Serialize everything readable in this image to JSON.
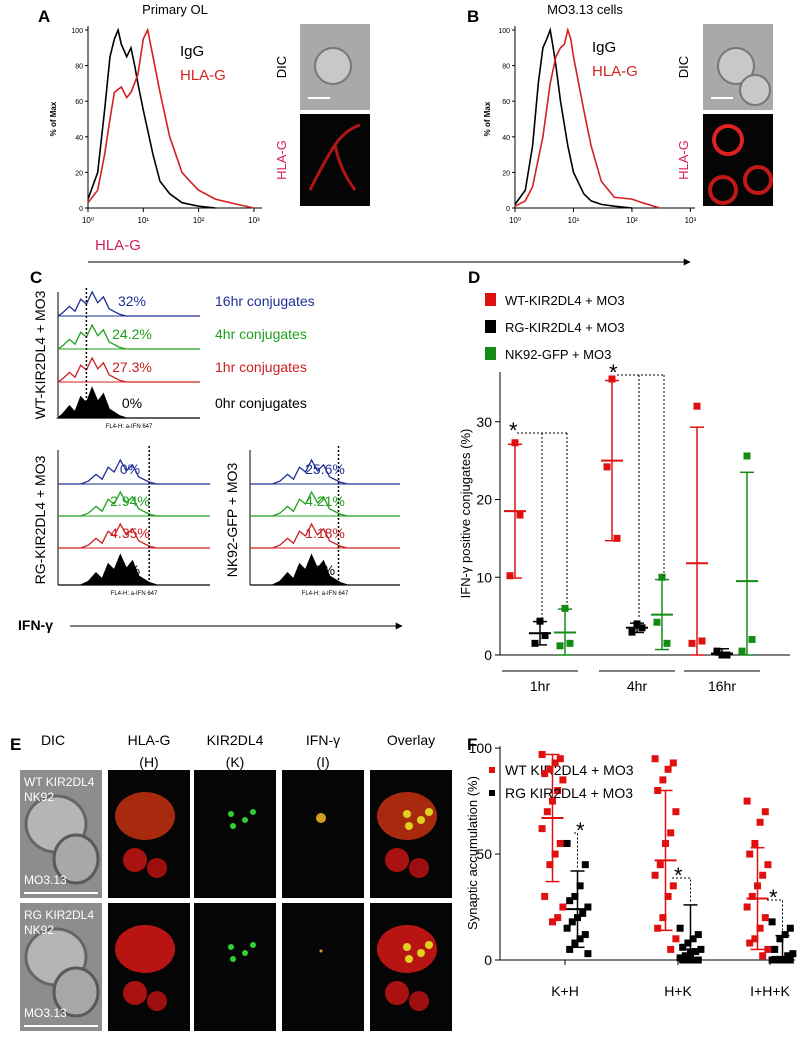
{
  "chart_data": [
    {
      "type": "flow-histogram",
      "panel": "A",
      "title": "Primary OL",
      "ylabel": "% of Max",
      "xlabel": "HLA-G",
      "log_x": true,
      "xlim": [
        1,
        1400
      ],
      "xticks": [
        {
          "value": 1,
          "label": "10⁰"
        },
        {
          "value": 10,
          "label": "10¹"
        },
        {
          "value": 100,
          "label": "10²"
        },
        {
          "value": 1000,
          "label": "10³"
        }
      ],
      "ylim": [
        0,
        100
      ],
      "yticks": [
        0,
        20,
        40,
        60,
        80,
        100
      ],
      "series": [
        {
          "name": "IgG",
          "color": "#000000",
          "x": [
            1,
            1.5,
            2,
            2.5,
            3,
            3.5,
            4,
            5,
            6,
            7,
            8,
            10,
            15,
            20,
            30,
            50,
            100,
            200
          ],
          "values": [
            5,
            20,
            55,
            85,
            95,
            100,
            92,
            85,
            90,
            80,
            70,
            55,
            30,
            15,
            8,
            3,
            1,
            0
          ]
        },
        {
          "name": "HLA-G",
          "color": "#d42020",
          "x": [
            1,
            1.5,
            2,
            2.5,
            3,
            4,
            5,
            6,
            8,
            10,
            12,
            15,
            20,
            30,
            50,
            70,
            100,
            200,
            500,
            1000
          ],
          "values": [
            3,
            10,
            30,
            50,
            65,
            68,
            62,
            65,
            75,
            95,
            100,
            85,
            65,
            40,
            20,
            15,
            10,
            5,
            2,
            0
          ]
        }
      ],
      "image_labels": [
        "DIC",
        "HLA-G"
      ]
    },
    {
      "type": "flow-histogram",
      "panel": "B",
      "title": "MO3.13 cells",
      "ylabel": "% of Max",
      "log_x": true,
      "xlim": [
        1,
        1200
      ],
      "xticks": [
        {
          "value": 1,
          "label": "10⁰"
        },
        {
          "value": 10,
          "label": "10¹"
        },
        {
          "value": 100,
          "label": "10²"
        },
        {
          "value": 1000,
          "label": "10³"
        }
      ],
      "ylim": [
        0,
        100
      ],
      "yticks": [
        0,
        20,
        40,
        60,
        80,
        100
      ],
      "series": [
        {
          "name": "IgG",
          "color": "#000000",
          "x": [
            1,
            1.5,
            2,
            2.5,
            3,
            3.5,
            4,
            4.5,
            5,
            6,
            8,
            10,
            15,
            20,
            30,
            50,
            100
          ],
          "values": [
            2,
            10,
            35,
            70,
            90,
            95,
            100,
            90,
            80,
            60,
            35,
            20,
            8,
            4,
            2,
            1,
            0
          ]
        },
        {
          "name": "HLA-G",
          "color": "#d42020",
          "x": [
            1,
            1.5,
            2,
            3,
            4,
            5,
            6,
            7,
            8,
            9,
            10,
            15,
            20,
            30,
            50,
            100,
            150,
            300
          ],
          "values": [
            1,
            4,
            12,
            40,
            70,
            85,
            90,
            92,
            100,
            95,
            85,
            55,
            35,
            15,
            6,
            5,
            3,
            0
          ]
        }
      ],
      "image_labels": [
        "DIC",
        "HLA-G"
      ]
    },
    {
      "type": "flow-stack",
      "panel": "C",
      "xlabel": "IFN-γ",
      "axis_label": "FL4-H: a-IFN 647",
      "rows": [
        {
          "name": "16hr conjugates",
          "color": "#1f2f95"
        },
        {
          "name": "4hr conjugates",
          "color": "#1fa01f"
        },
        {
          "name": "1hr conjugates",
          "color": "#cc1f1f"
        },
        {
          "name": "0hr conjugates",
          "color": "#000000"
        }
      ],
      "groups": [
        {
          "name": "WT-KIR2DL4 + MO3",
          "values": [
            32,
            24.2,
            27.3,
            0
          ],
          "value_labels": [
            "32%",
            "24.2%",
            "27.3%",
            "0%"
          ]
        },
        {
          "name": "RG-KIR2DL4 + MO3",
          "values": [
            0,
            2.94,
            4.35,
            0
          ],
          "value_labels": [
            "0%",
            "2.94%",
            "4.35%",
            "0%"
          ]
        },
        {
          "name": "NK92-GFP + MO3",
          "values": [
            25.6,
            4.21,
            1.18,
            0
          ],
          "value_labels": [
            "25.6%",
            "4.21%",
            "1.18%",
            "0%"
          ]
        }
      ]
    },
    {
      "type": "dot-errorbar",
      "panel": "D",
      "ylabel": "IFN-γ positive conjugates (%)",
      "categories": [
        "1hr",
        "4hr",
        "16hr"
      ],
      "ylim": [
        0,
        36.4
      ],
      "yticks": [
        0,
        10,
        20,
        30
      ],
      "annotations": [
        "*",
        "*"
      ],
      "series": [
        {
          "name": "WT-KIR2DL4 + MO3",
          "color": "#e01010",
          "points": [
            [
              27.3,
              10.2,
              18
            ],
            [
              35.5,
              24.2,
              15
            ],
            [
              32,
              1.5,
              1.8
            ]
          ],
          "means": [
            18.5,
            25,
            11.8
          ],
          "sds": [
            8.6,
            10.3,
            17.5
          ]
        },
        {
          "name": "RG-KIR2DL4 + MO3",
          "color": "#000000",
          "points": [
            [
              4.35,
              1.5,
              2.5
            ],
            [
              4,
              2.94,
              3.5
            ],
            [
              0,
              0.5,
              0
            ]
          ],
          "means": [
            2.8,
            3.5,
            0.2
          ],
          "sds": [
            1.5,
            0.6,
            0.6
          ]
        },
        {
          "name": "NK92-GFP + MO3",
          "color": "#168a16",
          "points": [
            [
              6,
              1.18,
              1.5
            ],
            [
              10,
              4.21,
              1.5
            ],
            [
              25.6,
              0.5,
              2
            ]
          ],
          "means": [
            2.9,
            5.2,
            9.5
          ],
          "sds": [
            3,
            4.5,
            14
          ]
        }
      ]
    },
    {
      "type": "dot-errorbar",
      "panel": "F",
      "ylabel": "Synaptic accumulation (%)",
      "categories": [
        "K+H",
        "H+K",
        "I+H+K"
      ],
      "ylim": [
        0,
        101
      ],
      "yticks": [
        0,
        50,
        100
      ],
      "annotations": [
        "*",
        "*",
        "*"
      ],
      "series": [
        {
          "name": "WT KIR2DL4 + MO3",
          "color": "#e01010",
          "points": [
            [
              97,
              95,
              93,
              90,
              88,
              85,
              80,
              75,
              70,
              62,
              55,
              50,
              45,
              30,
              25,
              20,
              18
            ],
            [
              95,
              93,
              90,
              85,
              80,
              70,
              60,
              55,
              45,
              40,
              35,
              30,
              20,
              15,
              10,
              5
            ],
            [
              75,
              70,
              65,
              55,
              50,
              45,
              40,
              35,
              30,
              25,
              20,
              15,
              10,
              8,
              5,
              2
            ]
          ],
          "means": [
            67,
            47,
            29
          ],
          "sds": [
            30,
            33,
            24
          ]
        },
        {
          "name": "RG KIR2DL4 + MO3",
          "color": "#000000",
          "points": [
            [
              55,
              45,
              35,
              30,
              28,
              25,
              22,
              20,
              18,
              15,
              12,
              10,
              8,
              5,
              3
            ],
            [
              15,
              12,
              10,
              8,
              6,
              5,
              4,
              3,
              2,
              1,
              0,
              0,
              0,
              0
            ],
            [
              18,
              15,
              12,
              10,
              5,
              3,
              2,
              0,
              0,
              0,
              0,
              0
            ]
          ],
          "means": [
            24,
            5,
            1.5
          ],
          "sds": [
            18,
            21,
            10
          ]
        }
      ]
    }
  ],
  "panel_e": {
    "panel": "E",
    "columns": [
      [
        "DIC"
      ],
      [
        "HLA-G",
        "(H)"
      ],
      [
        "KIR2DL4",
        "(K)"
      ],
      [
        "IFN-γ",
        "(I)"
      ],
      [
        "Overlay"
      ]
    ],
    "rows": [
      {
        "cells": [
          "WT KIR2DL4",
          "NK92"
        ],
        "target": "MO3.13"
      },
      {
        "cells": [
          "RG KIR2DL4",
          "NK92"
        ],
        "target": "MO3.13"
      }
    ]
  }
}
